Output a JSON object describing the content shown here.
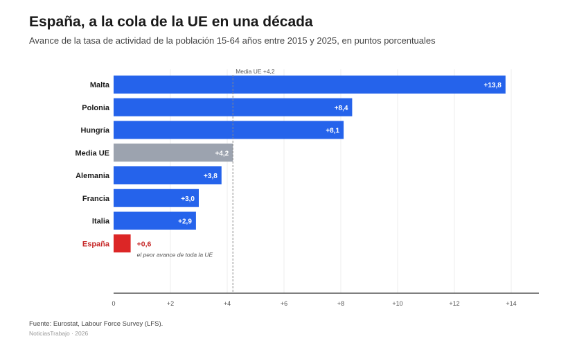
{
  "header": {
    "title": "España, a la cola de la UE en una década",
    "subtitle": "Avance de la tasa de actividad de la población 15-64 años entre 2015 y 2025, en puntos porcentuales"
  },
  "footer": {
    "source": "Fuente: Eurostat, Labour Force Survey (LFS).",
    "credit": "NoticiasTrabajo · 2026"
  },
  "colors": {
    "bar_default": "#2563eb",
    "bar_average": "#9ca3af",
    "bar_highlight": "#dc2626",
    "label_highlight": "#c62828",
    "reference_line": "#888888"
  },
  "chart_data": {
    "type": "bar",
    "orientation": "horizontal",
    "categories": [
      "Malta",
      "Polonia",
      "Hungría",
      "Media UE",
      "Alemania",
      "Francia",
      "Italia",
      "España"
    ],
    "values": [
      13.8,
      8.4,
      8.1,
      4.2,
      3.8,
      3.0,
      2.9,
      0.6
    ],
    "value_labels": [
      "+13,8",
      "+8,4",
      "+8,1",
      "+4,2",
      "+3,8",
      "+3,0",
      "+2,9",
      "+0,6"
    ],
    "highlight": "España",
    "average_category": "Media UE",
    "reference_line": {
      "value": 4.2,
      "label": "Media UE +4,2"
    },
    "annotation": {
      "category": "España",
      "text": "el peor avance de toda la UE"
    },
    "xlim": [
      0,
      15
    ],
    "xticks": [
      0,
      2,
      4,
      6,
      8,
      10,
      12,
      14
    ],
    "xtick_labels": [
      "0",
      "+2",
      "+4",
      "+6",
      "+8",
      "+10",
      "+12",
      "+14"
    ],
    "grid": true,
    "xlabel": "",
    "ylabel": ""
  }
}
